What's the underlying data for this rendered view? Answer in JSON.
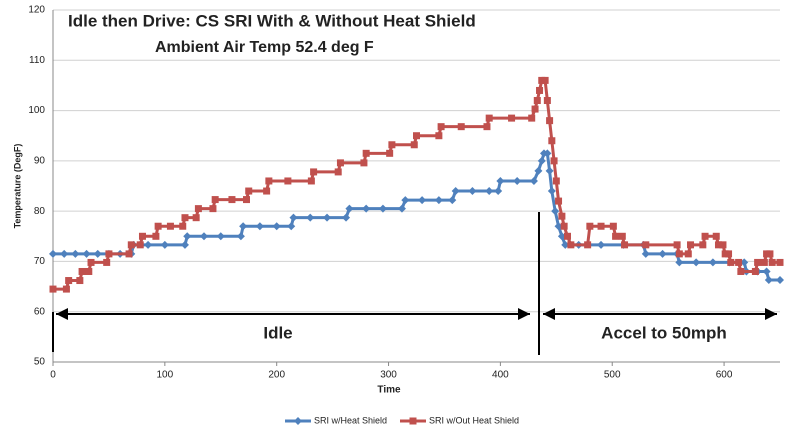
{
  "chart_data": {
    "type": "line",
    "title": "Idle then Drive: CS SRI With & Without Heat Shield",
    "subtitle": "Ambient Air Temp 52.4 deg F",
    "xlabel": "Time",
    "ylabel": "Temperature (DegF)",
    "annotations": [
      "Idle",
      "Accel to 50mph"
    ],
    "xlim": [
      0,
      650
    ],
    "xticks": [
      0,
      100,
      200,
      300,
      400,
      500,
      600
    ],
    "ylim": [
      50,
      120
    ],
    "yticks": [
      50,
      60,
      70,
      80,
      90,
      100,
      110,
      120
    ],
    "grid": true,
    "legend": "bottom",
    "series": [
      {
        "name": "SRI w/Heat Shield",
        "color": "#4f81bd",
        "marker": "diamond",
        "x": [
          0,
          10,
          20,
          30,
          40,
          50,
          60,
          70,
          72,
          85,
          100,
          118,
          120,
          135,
          150,
          168,
          170,
          185,
          200,
          213,
          215,
          230,
          245,
          262,
          265,
          280,
          295,
          312,
          315,
          330,
          345,
          357,
          360,
          375,
          390,
          398,
          400,
          415,
          430,
          434,
          437,
          439,
          442,
          444,
          446,
          449,
          452,
          455,
          458,
          470,
          490,
          510,
          528,
          530,
          545,
          558,
          560,
          575,
          590,
          605,
          618,
          620,
          630,
          638,
          640,
          650
        ],
        "values": [
          71.5,
          71.5,
          71.5,
          71.5,
          71.5,
          71.5,
          71.5,
          71.5,
          73.3,
          73.3,
          73.3,
          73.3,
          75,
          75,
          75,
          75,
          77,
          77,
          77,
          77,
          78.7,
          78.7,
          78.7,
          78.7,
          80.5,
          80.5,
          80.5,
          80.5,
          82.2,
          82.2,
          82.2,
          82.2,
          84,
          84,
          84,
          84,
          86,
          86,
          86,
          88,
          90,
          91.5,
          91.5,
          88,
          84,
          80,
          77,
          75,
          73.3,
          73.3,
          73.3,
          73.3,
          73.3,
          71.5,
          71.5,
          71.5,
          69.8,
          69.8,
          69.8,
          69.8,
          69.8,
          68,
          68,
          68,
          66.3,
          66.3
        ]
      },
      {
        "name": "SRI w/Out Heat Shield",
        "color": "#c0504d",
        "marker": "square",
        "x": [
          0,
          12,
          14,
          24,
          26,
          32,
          34,
          48,
          50,
          68,
          70,
          78,
          80,
          92,
          94,
          105,
          116,
          118,
          128,
          130,
          143,
          145,
          160,
          173,
          175,
          191,
          193,
          210,
          231,
          233,
          255,
          257,
          278,
          280,
          301,
          303,
          323,
          325,
          345,
          347,
          365,
          388,
          390,
          410,
          428,
          431,
          433,
          435,
          437,
          440,
          442,
          444,
          446,
          448,
          450,
          452,
          455,
          457,
          460,
          463,
          478,
          480,
          490,
          501,
          503,
          509,
          511,
          530,
          558,
          560,
          568,
          570,
          581,
          583,
          593,
          595,
          599,
          601,
          604,
          606,
          613,
          615,
          628,
          630,
          636,
          638,
          641,
          643,
          650
        ],
        "values": [
          64.5,
          64.5,
          66.2,
          66.2,
          68,
          68,
          69.8,
          69.8,
          71.5,
          71.5,
          73.3,
          73.3,
          75,
          75,
          77,
          77,
          77,
          78.7,
          78.7,
          80.5,
          80.5,
          82.3,
          82.3,
          82.3,
          84,
          84,
          86,
          86,
          86,
          87.8,
          87.8,
          89.6,
          89.6,
          91.5,
          91.5,
          93.2,
          93.2,
          95,
          95,
          96.8,
          96.8,
          96.8,
          98.5,
          98.5,
          98.5,
          100.3,
          102,
          104,
          106,
          106,
          102,
          98,
          94,
          90,
          86,
          82,
          79,
          77,
          75,
          73.3,
          73.3,
          77,
          77,
          77,
          75,
          75,
          73.3,
          73.3,
          73.3,
          71.5,
          71.5,
          73.3,
          73.3,
          75,
          75,
          73.3,
          73.3,
          71.5,
          71.5,
          69.8,
          69.8,
          68,
          68,
          69.8,
          69.8,
          71.5,
          71.5,
          69.8,
          69.8
        ]
      }
    ]
  }
}
